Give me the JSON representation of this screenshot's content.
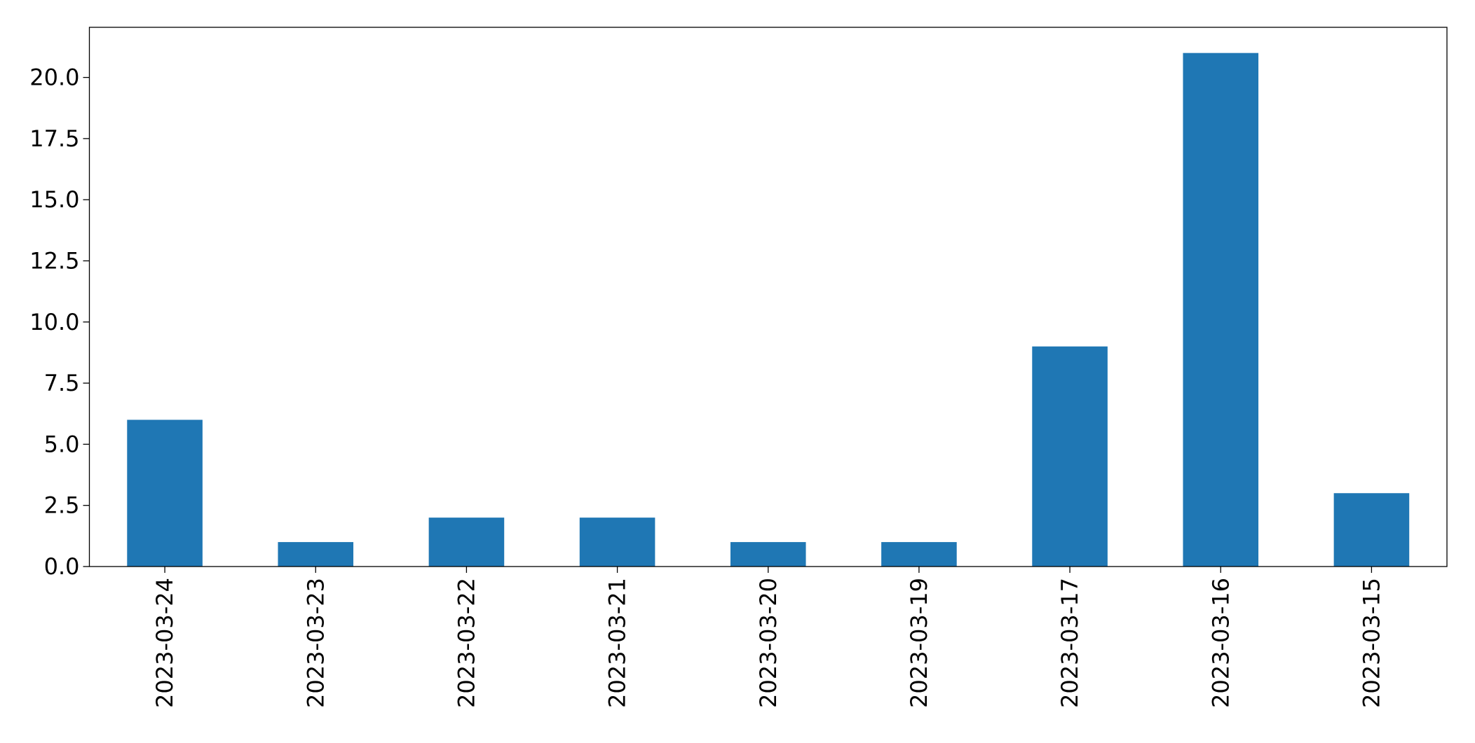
{
  "chart_data": {
    "type": "bar",
    "categories": [
      "2023-03-24",
      "2023-03-23",
      "2023-03-22",
      "2023-03-21",
      "2023-03-20",
      "2023-03-19",
      "2023-03-17",
      "2023-03-16",
      "2023-03-15"
    ],
    "values": [
      6,
      1,
      2,
      2,
      1,
      1,
      9,
      21,
      3
    ],
    "color": "#1f77b4",
    "ylim": [
      0,
      22.05
    ],
    "yticks": [
      {
        "value": 0,
        "label": "0.0"
      },
      2.5,
      {
        "value": 5,
        "label": "5.0"
      },
      7.5,
      {
        "value": 10,
        "label": "10.0"
      },
      12.5,
      {
        "value": 15,
        "label": "15.0"
      },
      17.5,
      {
        "value": 20,
        "label": "20.0"
      }
    ],
    "grid": false
  }
}
